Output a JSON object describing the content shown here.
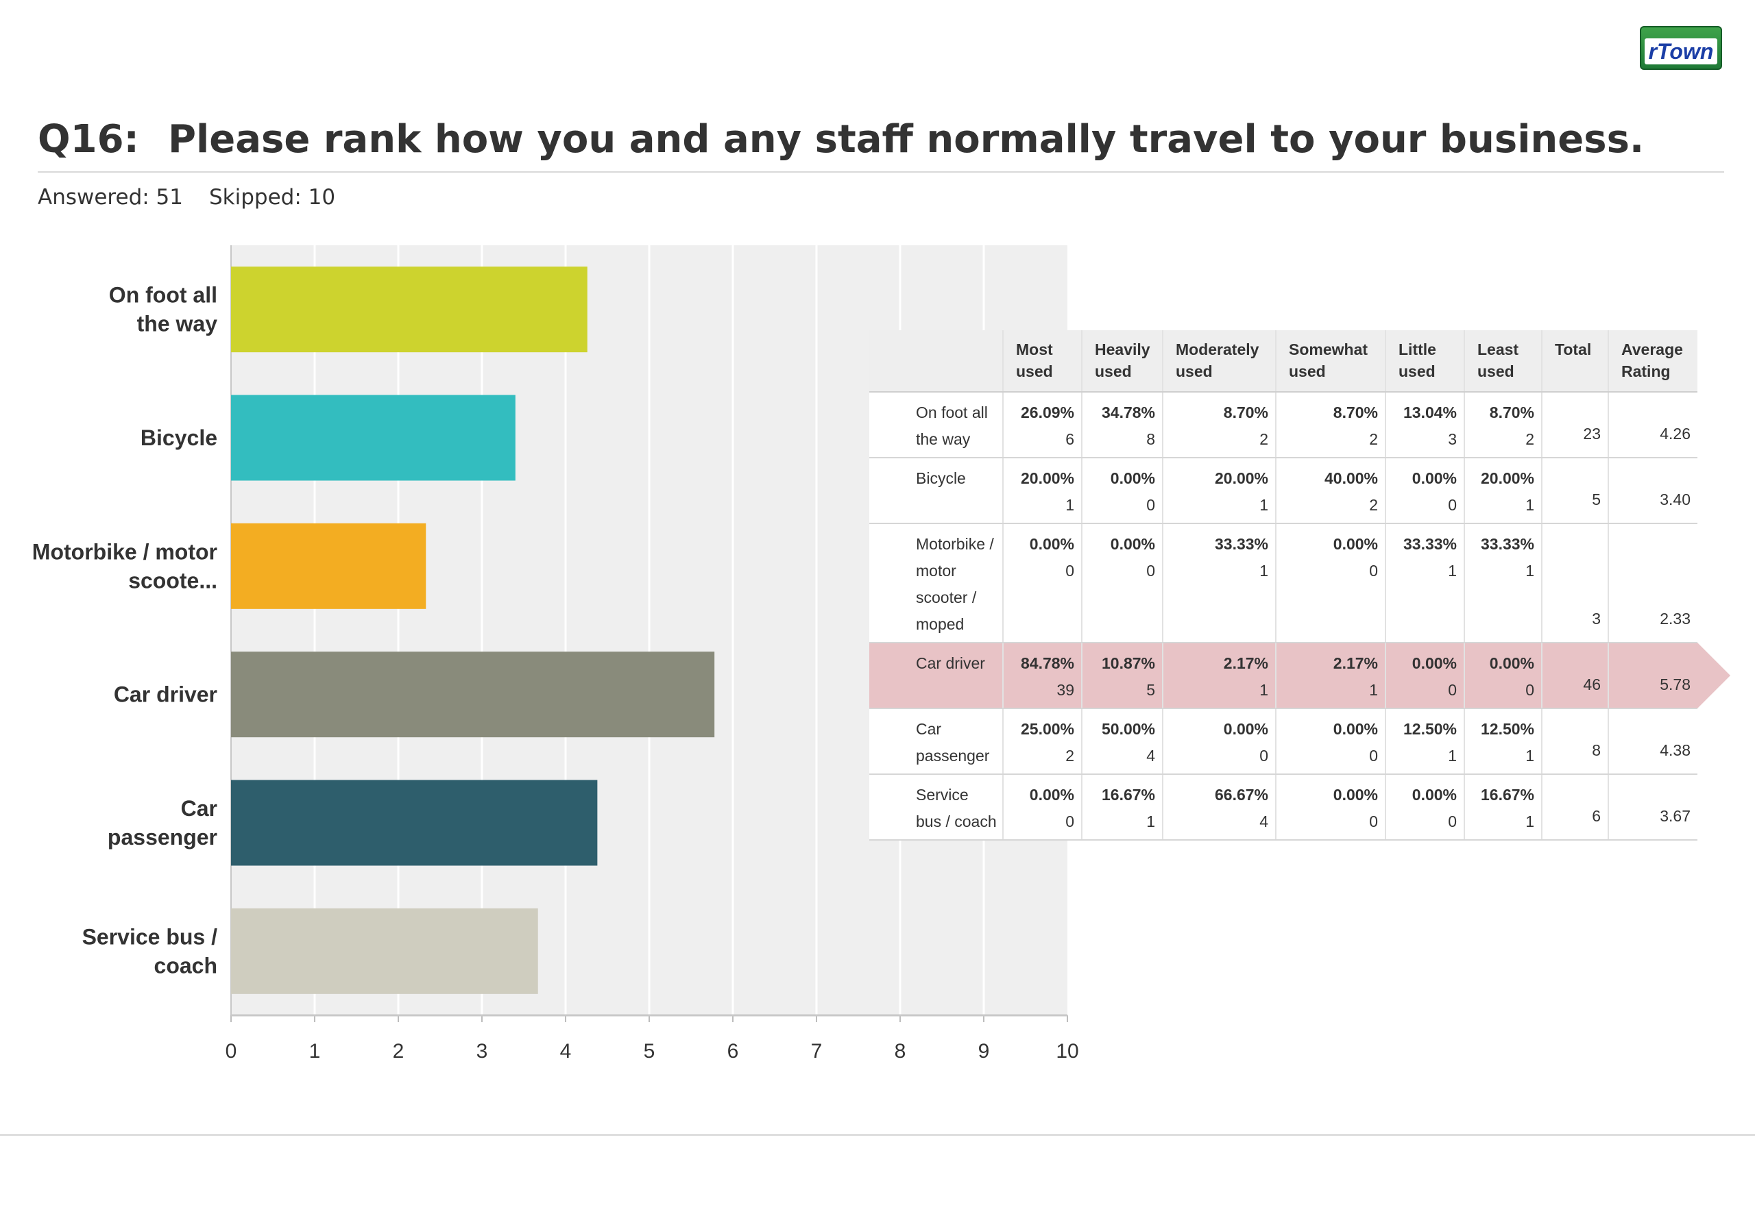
{
  "logo": {
    "text": "rTown"
  },
  "question": {
    "number": "Q16:",
    "text": "Please rank how you and any staff normally travel to your business.",
    "answered": "Answered: 51",
    "skipped": "Skipped: 10"
  },
  "chart_data": {
    "type": "bar",
    "orientation": "horizontal",
    "categories": [
      "On foot all the way",
      "Bicycle",
      "Motorbike / motor scoote...",
      "Car driver",
      "Car passenger",
      "Service bus / coach"
    ],
    "values": [
      4.26,
      3.4,
      2.33,
      5.78,
      4.38,
      3.67
    ],
    "colors": [
      "#cdd32e",
      "#33bdbf",
      "#f3ad22",
      "#898b7b",
      "#2e5e6c",
      "#cfcdbf"
    ],
    "xlim": [
      0,
      10
    ],
    "ticks": [
      0,
      1,
      2,
      3,
      4,
      5,
      6,
      7,
      8,
      9,
      10
    ],
    "grid": true,
    "title": "",
    "xlabel": "",
    "ylabel": ""
  },
  "table": {
    "columns": [
      "",
      "Most used",
      "Heavily used",
      "Moderately used",
      "Somewhat used",
      "Little used",
      "Least used",
      "Total",
      "Average Rating"
    ],
    "rows": [
      {
        "label": "On foot all the way",
        "cells": [
          {
            "pct": "26.09%",
            "n": "6"
          },
          {
            "pct": "34.78%",
            "n": "8"
          },
          {
            "pct": "8.70%",
            "n": "2"
          },
          {
            "pct": "8.70%",
            "n": "2"
          },
          {
            "pct": "13.04%",
            "n": "3"
          },
          {
            "pct": "8.70%",
            "n": "2"
          }
        ],
        "total": "23",
        "avg": "4.26",
        "highlight": false
      },
      {
        "label": "Bicycle",
        "cells": [
          {
            "pct": "20.00%",
            "n": "1"
          },
          {
            "pct": "0.00%",
            "n": "0"
          },
          {
            "pct": "20.00%",
            "n": "1"
          },
          {
            "pct": "40.00%",
            "n": "2"
          },
          {
            "pct": "0.00%",
            "n": "0"
          },
          {
            "pct": "20.00%",
            "n": "1"
          }
        ],
        "total": "5",
        "avg": "3.40",
        "highlight": false
      },
      {
        "label": "Motorbike / motor scooter / moped",
        "cells": [
          {
            "pct": "0.00%",
            "n": "0"
          },
          {
            "pct": "0.00%",
            "n": "0"
          },
          {
            "pct": "33.33%",
            "n": "1"
          },
          {
            "pct": "0.00%",
            "n": "0"
          },
          {
            "pct": "33.33%",
            "n": "1"
          },
          {
            "pct": "33.33%",
            "n": "1"
          }
        ],
        "total": "3",
        "avg": "2.33",
        "highlight": false
      },
      {
        "label": "Car driver",
        "cells": [
          {
            "pct": "84.78%",
            "n": "39"
          },
          {
            "pct": "10.87%",
            "n": "5"
          },
          {
            "pct": "2.17%",
            "n": "1"
          },
          {
            "pct": "2.17%",
            "n": "1"
          },
          {
            "pct": "0.00%",
            "n": "0"
          },
          {
            "pct": "0.00%",
            "n": "0"
          }
        ],
        "total": "46",
        "avg": "5.78",
        "highlight": true
      },
      {
        "label": "Car passenger",
        "cells": [
          {
            "pct": "25.00%",
            "n": "2"
          },
          {
            "pct": "50.00%",
            "n": "4"
          },
          {
            "pct": "0.00%",
            "n": "0"
          },
          {
            "pct": "0.00%",
            "n": "0"
          },
          {
            "pct": "12.50%",
            "n": "1"
          },
          {
            "pct": "12.50%",
            "n": "1"
          }
        ],
        "total": "8",
        "avg": "4.38",
        "highlight": false
      },
      {
        "label": "Service bus / coach",
        "cells": [
          {
            "pct": "0.00%",
            "n": "0"
          },
          {
            "pct": "16.67%",
            "n": "1"
          },
          {
            "pct": "66.67%",
            "n": "4"
          },
          {
            "pct": "0.00%",
            "n": "0"
          },
          {
            "pct": "0.00%",
            "n": "0"
          },
          {
            "pct": "16.67%",
            "n": "1"
          }
        ],
        "total": "6",
        "avg": "3.67",
        "highlight": false
      }
    ]
  }
}
